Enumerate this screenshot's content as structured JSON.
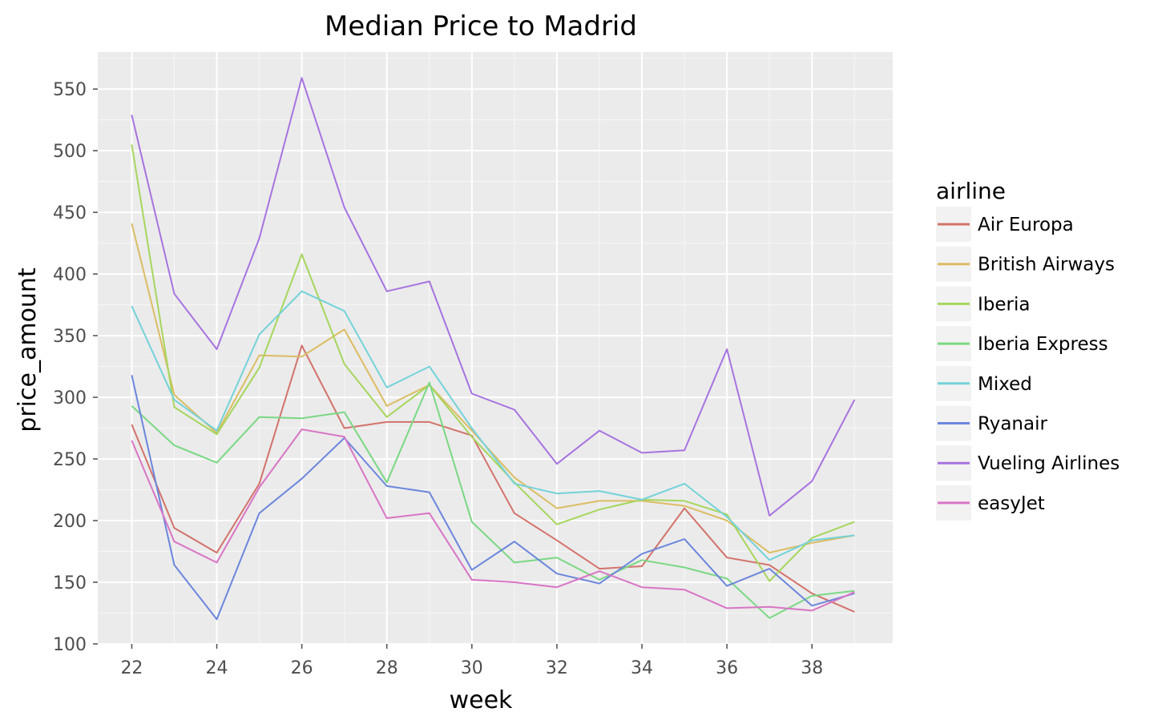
{
  "chart_data": {
    "type": "line",
    "title": "Median Price to Madrid",
    "xlabel": "week",
    "ylabel": "price_amount",
    "xlim": [
      21.2,
      39.9
    ],
    "ylim": [
      100,
      580
    ],
    "xticks": [
      22,
      24,
      26,
      28,
      30,
      32,
      34,
      36,
      38
    ],
    "yticks": [
      100,
      150,
      200,
      250,
      300,
      350,
      400,
      450,
      500,
      550
    ],
    "grid": true,
    "legend": {
      "title": "airline",
      "position": "right"
    },
    "x": [
      22,
      23,
      24,
      25,
      26,
      27,
      28,
      29,
      30,
      31,
      32,
      33,
      34,
      35,
      36,
      37,
      38,
      39
    ],
    "series": [
      {
        "name": "Air Europa",
        "color": "#d2736b",
        "values": [
          278,
          194,
          174,
          230,
          342,
          275,
          280,
          280,
          269,
          206,
          184,
          161,
          163,
          210,
          170,
          164,
          141,
          126
        ]
      },
      {
        "name": "British Airways",
        "color": "#dbbd63",
        "values": [
          441,
          302,
          271,
          334,
          333,
          355,
          293,
          310,
          273,
          235,
          210,
          216,
          216,
          212,
          200,
          174,
          182,
          188
        ]
      },
      {
        "name": "Iberia",
        "color": "#a6d65d",
        "values": [
          505,
          292,
          270,
          324,
          416,
          327,
          284,
          310,
          268,
          231,
          197,
          209,
          217,
          216,
          205,
          151,
          186,
          199
        ]
      },
      {
        "name": "Iberia Express",
        "color": "#7ad883",
        "values": [
          293,
          261,
          247,
          284,
          283,
          288,
          231,
          312,
          199,
          166,
          170,
          152,
          168,
          162,
          153,
          121,
          139,
          143
        ]
      },
      {
        "name": "Mixed",
        "color": "#74d2d9",
        "values": [
          374,
          298,
          273,
          351,
          386,
          370,
          308,
          325,
          275,
          230,
          222,
          224,
          217,
          230,
          203,
          168,
          184,
          188
        ]
      },
      {
        "name": "Ryanair",
        "color": "#6c86dc",
        "values": [
          318,
          164,
          120,
          206,
          234,
          267,
          228,
          223,
          160,
          183,
          157,
          149,
          173,
          185,
          147,
          161,
          131,
          141
        ]
      },
      {
        "name": "Vueling Airlines",
        "color": "#a773e0",
        "values": [
          529,
          384,
          339,
          429,
          559,
          454,
          386,
          394,
          303,
          290,
          246,
          273,
          255,
          257,
          339,
          204,
          232,
          298
        ]
      },
      {
        "name": "easyJet",
        "color": "#d875c5",
        "values": [
          265,
          183,
          166,
          227,
          274,
          268,
          202,
          206,
          152,
          150,
          146,
          159,
          146,
          144,
          129,
          130,
          127,
          142
        ]
      }
    ]
  }
}
